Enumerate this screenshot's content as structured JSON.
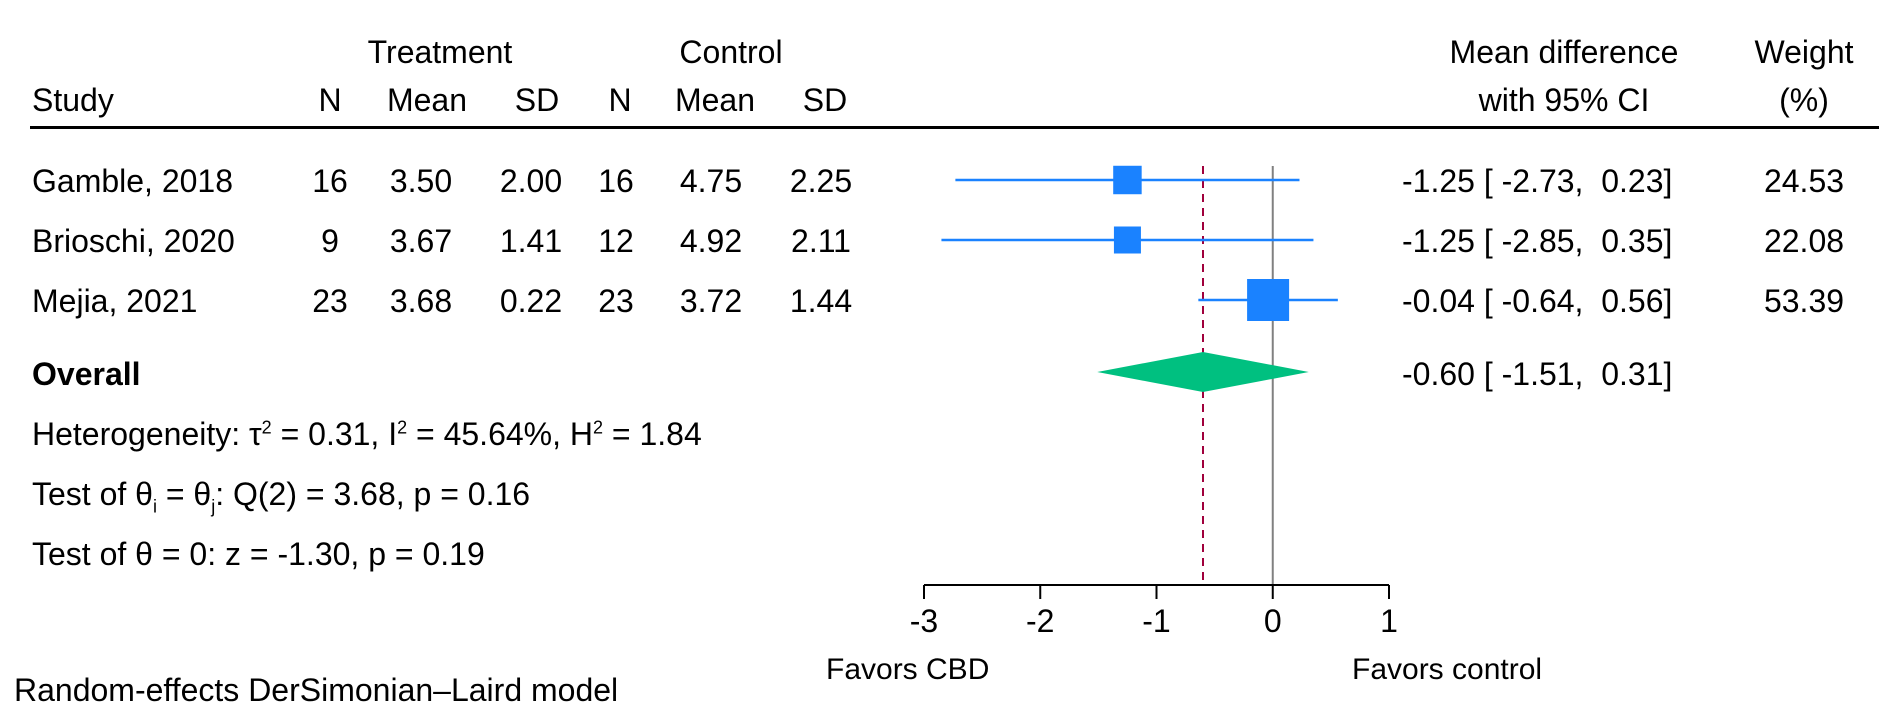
{
  "header": {
    "group_treatment": "Treatment",
    "group_control": "Control",
    "col_study": "Study",
    "col_n": "N",
    "col_mean": "Mean",
    "col_sd": "SD",
    "effect_line1": "Mean difference",
    "effect_line2": "with 95% CI",
    "weight_line1": "Weight",
    "weight_line2": "(%)"
  },
  "studies": [
    {
      "name": "Gamble, 2018",
      "t_n": "16",
      "t_mean": "3.50",
      "t_sd": "2.00",
      "c_n": "16",
      "c_mean": "4.75",
      "c_sd": "2.25",
      "ci_text": "-1.25 [ -2.73,  0.23]",
      "weight": "24.53"
    },
    {
      "name": "Brioschi, 2020",
      "t_n": "9",
      "t_mean": "3.67",
      "t_sd": "1.41",
      "c_n": "12",
      "c_mean": "4.92",
      "c_sd": "2.11",
      "ci_text": "-1.25 [ -2.85,  0.35]",
      "weight": "22.08"
    },
    {
      "name": "Mejia, 2021",
      "t_n": "23",
      "t_mean": "3.68",
      "t_sd": "0.22",
      "c_n": "23",
      "c_mean": "3.72",
      "c_sd": "1.44",
      "ci_text": "-0.04 [ -0.64,  0.56]",
      "weight": "53.39"
    }
  ],
  "overall": {
    "label": "Overall",
    "ci_text": "-0.60 [ -1.51,  0.31]"
  },
  "stats": {
    "het_prefix": "Heterogeneity: τ",
    "het_sq1": "2",
    "het_mid1": " = 0.31, I",
    "het_sq2": "2",
    "het_mid2": " = 45.64%, H",
    "het_sq3": "2",
    "het_end": " = 1.84",
    "q_prefix": "Test of θ",
    "q_sub_i": "i",
    "q_mid": " = θ",
    "q_sub_j": "j",
    "q_end": ": Q(2) = 3.68, p = 0.16",
    "z_test": "Test of θ = 0: z = -1.30, p = 0.19"
  },
  "footer": {
    "favors_left": "Favors CBD",
    "favors_right": "Favors control",
    "model": "Random-effects DerSimonian–Laird model"
  },
  "chart_data": {
    "type": "forest",
    "x_ticks": [
      -3,
      -2,
      -1,
      0,
      1
    ],
    "xlim": [
      -3,
      1
    ],
    "null_line": 0,
    "overall_line": -0.6,
    "series": [
      {
        "name": "Gamble, 2018",
        "estimate": -1.25,
        "lower": -2.73,
        "upper": 0.23,
        "weight": 24.53
      },
      {
        "name": "Brioschi, 2020",
        "estimate": -1.25,
        "lower": -2.85,
        "upper": 0.35,
        "weight": 22.08
      },
      {
        "name": "Mejia, 2021",
        "estimate": -0.04,
        "lower": -0.64,
        "upper": 0.56,
        "weight": 53.39
      }
    ],
    "overall": {
      "estimate": -0.6,
      "lower": -1.51,
      "upper": 0.31
    },
    "colors": {
      "study": "#1a82ff",
      "overall": "#00c080",
      "overall_line": "#a0003c",
      "null_line": "#808080"
    }
  }
}
